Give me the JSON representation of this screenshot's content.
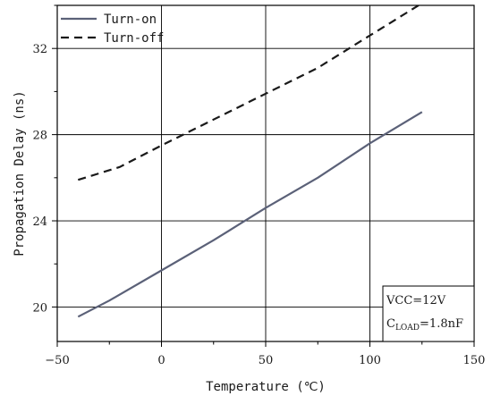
{
  "chart_data": {
    "type": "line",
    "title": "",
    "xlabel": "Temperature (℃)",
    "ylabel": "Propagation Delay (ns)",
    "xlim": [
      -50,
      150
    ],
    "ylim": [
      18.4,
      34
    ],
    "x_ticks": [
      -50,
      0,
      50,
      100,
      150
    ],
    "y_ticks": [
      20,
      24,
      28,
      32
    ],
    "x_tick_labels": [
      "−50",
      "0",
      "50",
      "100",
      "150"
    ],
    "y_tick_labels": [
      "20",
      "24",
      "28",
      "32"
    ],
    "grid": true,
    "legend_position": "top-left",
    "series": [
      {
        "name": "Turn-on",
        "style": "solid",
        "color": "#5b6178",
        "x": [
          -40,
          -25,
          0,
          25,
          50,
          75,
          100,
          125
        ],
        "y": [
          19.55,
          20.3,
          21.7,
          23.1,
          24.6,
          26.0,
          27.6,
          29.05
        ]
      },
      {
        "name": "Turn-off",
        "style": "dashed",
        "color": "#1a1a1a",
        "x": [
          -40,
          -20,
          0,
          25,
          50,
          75,
          100,
          125
        ],
        "y": [
          25.9,
          26.5,
          27.5,
          28.7,
          29.9,
          31.1,
          32.6,
          34.1
        ]
      }
    ],
    "annotation": {
      "line1": "VCC=12V",
      "line2_prefix": "C",
      "line2_sub": "LOAD",
      "line2_suffix": "=1.8nF"
    }
  }
}
